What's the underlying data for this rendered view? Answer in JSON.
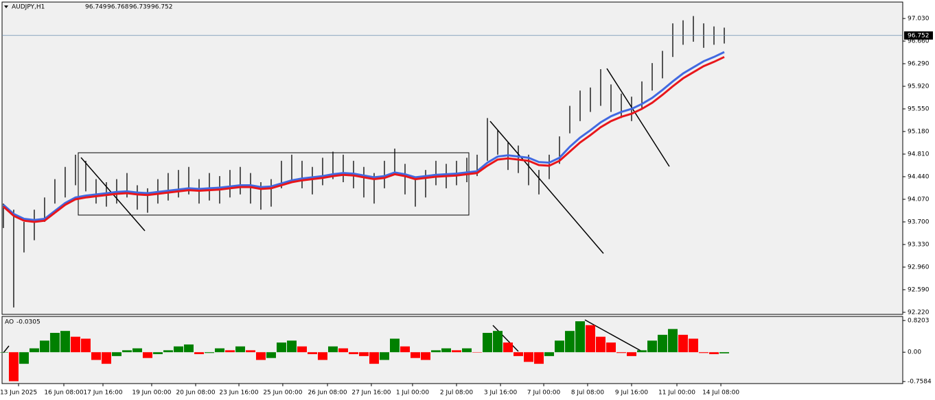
{
  "chart_data": [
    {
      "type": "ohlc",
      "title": "AUDJPY,H1",
      "header_values": [
        96.749,
        96.768,
        96.739,
        96.752
      ],
      "last_price": {
        "value": 96.752,
        "label": "96.752"
      },
      "xlim": [
        -0.13,
        87.33
      ],
      "ylim": [
        92.186,
        97.299
      ],
      "yticks": [
        {
          "value": 97.03,
          "label": "97.030"
        },
        {
          "value": 96.66,
          "label": "96.660"
        },
        {
          "value": 96.29,
          "label": "96.290"
        },
        {
          "value": 95.92,
          "label": "95.920"
        },
        {
          "value": 95.55,
          "label": "95.550"
        },
        {
          "value": 95.18,
          "label": "95.180"
        },
        {
          "value": 94.81,
          "label": "94.810"
        },
        {
          "value": 94.44,
          "label": "94.440"
        },
        {
          "value": 94.07,
          "label": "94.070"
        },
        {
          "value": 93.7,
          "label": "93.700"
        },
        {
          "value": 93.33,
          "label": "93.330"
        },
        {
          "value": 92.96,
          "label": "92.960"
        },
        {
          "value": 92.59,
          "label": "92.590"
        },
        {
          "value": 92.22,
          "label": "92.220"
        }
      ],
      "xticks": [
        {
          "value": 1.47,
          "label": "13 Jun 2025"
        },
        {
          "value": 5.87,
          "label": "16 Jun 08:00"
        },
        {
          "value": 9.67,
          "label": "17 Jun 16:00"
        },
        {
          "value": 14.4,
          "label": "19 Jun 00:00"
        },
        {
          "value": 18.67,
          "label": "20 Jun 08:00"
        },
        {
          "value": 22.87,
          "label": "23 Jun 16:00"
        },
        {
          "value": 27.13,
          "label": "25 Jun 00:00"
        },
        {
          "value": 31.47,
          "label": "26 Jun 08:00"
        },
        {
          "value": 35.73,
          "label": "27 Jun 16:00"
        },
        {
          "value": 39.73,
          "label": "1 Jul 00:00"
        },
        {
          "value": 44,
          "label": "2 Jul 08:00"
        },
        {
          "value": 48.27,
          "label": "3 Jul 16:00"
        },
        {
          "value": 52.47,
          "label": "7 Jul 00:00"
        },
        {
          "value": 56.73,
          "label": "8 Jul 08:00"
        },
        {
          "value": 61,
          "label": "9 Jul 16:00"
        },
        {
          "value": 65.4,
          "label": "11 Jul 00:00"
        },
        {
          "value": 69.67,
          "label": "14 Jul 08:00"
        }
      ],
      "bar_color": "#000000",
      "high": [
        94.0,
        93.9,
        93.7,
        93.9,
        94.1,
        94.4,
        94.6,
        94.8,
        94.7,
        94.4,
        94.35,
        94.4,
        94.5,
        94.3,
        94.25,
        94.4,
        94.5,
        94.55,
        94.6,
        94.4,
        94.5,
        94.45,
        94.55,
        94.6,
        94.5,
        94.35,
        94.4,
        94.7,
        94.8,
        94.7,
        94.6,
        94.75,
        94.85,
        94.8,
        94.7,
        94.6,
        94.5,
        94.7,
        94.9,
        94.65,
        94.4,
        94.55,
        94.7,
        94.65,
        94.7,
        94.75,
        94.8,
        95.4,
        95.2,
        95.0,
        94.95,
        94.8,
        94.55,
        94.8,
        95.1,
        95.6,
        95.85,
        95.9,
        96.2,
        95.95,
        95.8,
        95.75,
        96.0,
        96.3,
        96.5,
        96.95,
        97.0,
        97.07,
        96.95,
        96.9,
        96.88
      ],
      "low": [
        93.6,
        92.3,
        93.2,
        93.4,
        93.7,
        94.0,
        94.1,
        94.3,
        94.2,
        94.0,
        93.95,
        94.0,
        94.1,
        93.9,
        93.85,
        94.0,
        94.05,
        94.1,
        94.15,
        94.0,
        94.05,
        94.0,
        94.1,
        94.15,
        94.0,
        93.9,
        93.95,
        94.25,
        94.35,
        94.25,
        94.15,
        94.3,
        94.4,
        94.35,
        94.25,
        94.1,
        94.0,
        94.25,
        94.5,
        94.15,
        93.95,
        94.1,
        94.3,
        94.25,
        94.3,
        94.35,
        94.45,
        94.7,
        94.8,
        94.55,
        94.5,
        94.3,
        94.15,
        94.4,
        94.65,
        95.15,
        95.35,
        95.5,
        95.6,
        95.5,
        95.4,
        95.35,
        95.55,
        95.85,
        96.05,
        96.4,
        96.6,
        96.65,
        96.55,
        96.6,
        96.62
      ],
      "series": [
        {
          "color": "#4169e1",
          "values": [
            93.98,
            93.83,
            93.75,
            93.73,
            93.75,
            93.88,
            94.01,
            94.1,
            94.13,
            94.15,
            94.17,
            94.19,
            94.2,
            94.18,
            94.17,
            94.19,
            94.21,
            94.23,
            94.25,
            94.24,
            94.25,
            94.26,
            94.28,
            94.3,
            94.3,
            94.27,
            94.28,
            94.33,
            94.38,
            94.41,
            94.43,
            94.45,
            94.48,
            94.5,
            94.49,
            94.46,
            94.43,
            94.45,
            94.51,
            94.48,
            94.43,
            94.45,
            94.47,
            94.48,
            94.49,
            94.51,
            94.53,
            94.67,
            94.77,
            94.79,
            94.77,
            94.75,
            94.68,
            94.67,
            94.75,
            94.93,
            95.08,
            95.2,
            95.33,
            95.43,
            95.5,
            95.55,
            95.63,
            95.73,
            95.86,
            96.0,
            96.13,
            96.23,
            96.33,
            96.4,
            96.48
          ]
        },
        {
          "color": "#e8161b",
          "values": [
            93.95,
            93.8,
            93.72,
            93.7,
            93.72,
            93.85,
            93.98,
            94.07,
            94.1,
            94.12,
            94.14,
            94.16,
            94.17,
            94.15,
            94.14,
            94.16,
            94.18,
            94.2,
            94.22,
            94.21,
            94.22,
            94.23,
            94.25,
            94.27,
            94.27,
            94.24,
            94.25,
            94.3,
            94.35,
            94.38,
            94.4,
            94.42,
            94.45,
            94.47,
            94.46,
            94.43,
            94.4,
            94.42,
            94.48,
            94.45,
            94.4,
            94.42,
            94.44,
            94.45,
            94.46,
            94.48,
            94.5,
            94.62,
            94.72,
            94.74,
            94.72,
            94.7,
            94.63,
            94.62,
            94.7,
            94.85,
            95.0,
            95.12,
            95.25,
            95.35,
            95.42,
            95.47,
            95.55,
            95.65,
            95.78,
            95.92,
            96.05,
            96.15,
            96.25,
            96.32,
            96.4
          ]
        }
      ]
    },
    {
      "type": "histogram-ao",
      "title": "AO",
      "last_value": -0.0305,
      "xlim": [
        -0.13,
        87.33
      ],
      "ylim": [
        -0.811,
        0.925
      ],
      "yticks": [
        {
          "value": 0.8203,
          "label": "0.8203"
        },
        {
          "value": 0,
          "label": "0.00"
        },
        {
          "value": -0.7584,
          "label": "-0.7584"
        }
      ],
      "up_color": "#008000",
      "down_color": "#ff0000",
      "values": [
        0.0,
        -0.75,
        -0.3,
        0.1,
        0.3,
        0.5,
        0.55,
        0.4,
        0.35,
        -0.2,
        -0.3,
        -0.1,
        0.05,
        0.1,
        -0.15,
        -0.05,
        0.05,
        0.15,
        0.2,
        -0.05,
        -0.02,
        0.1,
        0.05,
        0.15,
        0.05,
        -0.2,
        -0.15,
        0.25,
        0.3,
        0.15,
        -0.05,
        -0.2,
        0.15,
        0.1,
        -0.05,
        -0.1,
        -0.3,
        -0.2,
        0.35,
        0.15,
        -0.15,
        -0.2,
        0.05,
        0.1,
        0.05,
        0.1,
        0.0,
        0.5,
        0.55,
        0.25,
        -0.1,
        -0.25,
        -0.3,
        -0.1,
        0.3,
        0.55,
        0.8,
        0.7,
        0.4,
        0.25,
        -0.02,
        -0.1,
        0.05,
        0.3,
        0.45,
        0.6,
        0.45,
        0.35,
        -0.02,
        -0.05,
        -0.03
      ]
    }
  ]
}
